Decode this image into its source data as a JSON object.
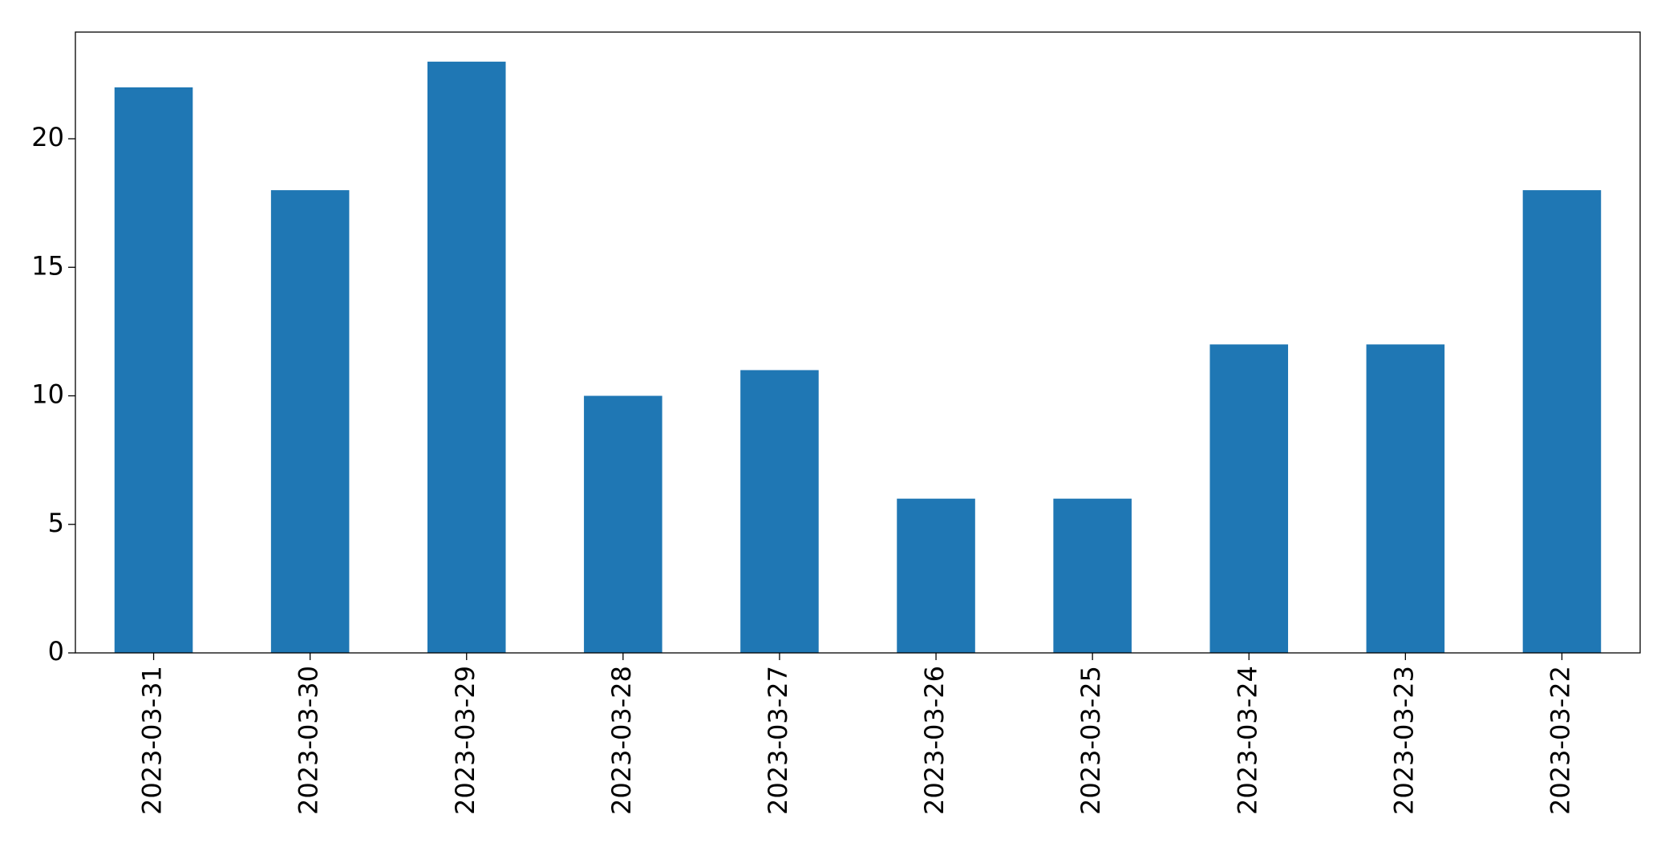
{
  "chart_data": {
    "type": "bar",
    "categories": [
      "2023-03-31",
      "2023-03-30",
      "2023-03-29",
      "2023-03-28",
      "2023-03-27",
      "2023-03-26",
      "2023-03-25",
      "2023-03-24",
      "2023-03-23",
      "2023-03-22"
    ],
    "values": [
      22,
      18,
      23,
      10,
      11,
      6,
      6,
      12,
      12,
      18
    ],
    "color": "#1f77b4",
    "ylim": [
      0,
      24.15
    ],
    "yticks": [
      0,
      5,
      10,
      15,
      20
    ],
    "grid": false
  }
}
